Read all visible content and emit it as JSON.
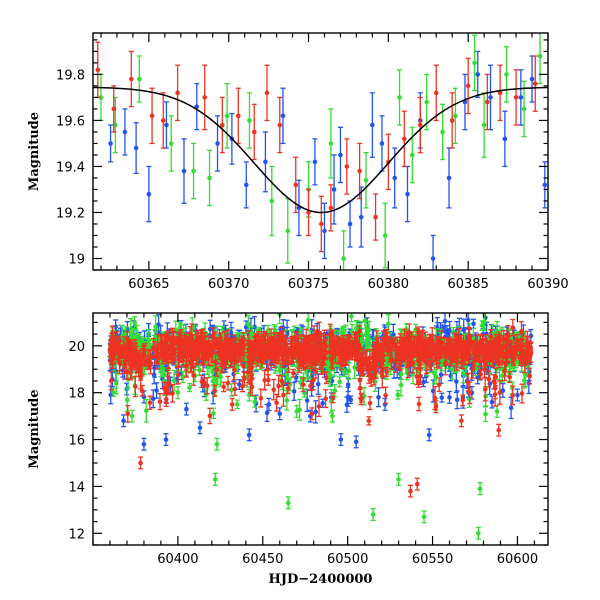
{
  "chart_data": [
    {
      "type": "scatter",
      "xlabel": "",
      "ylabel": "Magnitude",
      "xlim": [
        60361.5,
        60390
      ],
      "ylim": [
        19.98,
        18.95
      ],
      "y_inverted": true,
      "xticks": [
        60365,
        60370,
        60375,
        60380,
        60385,
        60390
      ],
      "yticks": [
        19,
        19.2,
        19.4,
        19.6,
        19.8
      ],
      "grid": false,
      "model_curve": {
        "peak_x": 60375.8,
        "peak_mag": 19.2,
        "baseline_mag": 19.745,
        "width_days": 4.2,
        "color": "#000000"
      },
      "series": [
        {
          "color": "#2255ee",
          "points": [
            [
              60362.6,
              19.5,
              0.08
            ],
            [
              60363.5,
              19.55,
              0.1
            ],
            [
              60364.2,
              19.48,
              0.11
            ],
            [
              60365.0,
              19.28,
              0.12
            ],
            [
              60366.1,
              19.58,
              0.1
            ],
            [
              60367.2,
              19.38,
              0.14
            ],
            [
              60368.0,
              19.66,
              0.1
            ],
            [
              60369.3,
              19.5,
              0.12
            ],
            [
              60370.2,
              19.52,
              0.11
            ],
            [
              60371.1,
              19.32,
              0.1
            ],
            [
              60372.3,
              19.42,
              0.13
            ],
            [
              60373.4,
              19.62,
              0.12
            ],
            [
              60374.4,
              19.22,
              0.12
            ],
            [
              60375.4,
              19.42,
              0.1
            ],
            [
              60376.0,
              19.12,
              0.12
            ],
            [
              60376.6,
              19.3,
              0.15
            ],
            [
              60377.0,
              19.45,
              0.12
            ],
            [
              60377.6,
              19.15,
              0.1
            ],
            [
              60378.3,
              19.18,
              0.13
            ],
            [
              60379.0,
              19.58,
              0.14
            ],
            [
              60379.6,
              19.5,
              0.12
            ],
            [
              60380.4,
              19.35,
              0.13
            ],
            [
              60381.2,
              19.28,
              0.12
            ],
            [
              60382.0,
              19.6,
              0.12
            ],
            [
              60382.8,
              19.0,
              0.1
            ],
            [
              60383.8,
              19.35,
              0.13
            ],
            [
              60384.8,
              19.68,
              0.12
            ],
            [
              60385.6,
              19.8,
              0.1
            ],
            [
              60386.4,
              19.7,
              0.14
            ],
            [
              60387.3,
              19.52,
              0.12
            ],
            [
              60388.3,
              19.7,
              0.12
            ],
            [
              60389.0,
              19.78,
              0.1
            ],
            [
              60389.8,
              19.32,
              0.1
            ]
          ]
        },
        {
          "color": "#33dd33",
          "points": [
            [
              60362.0,
              19.7,
              0.1
            ],
            [
              60362.9,
              19.58,
              0.12
            ],
            [
              60364.4,
              19.78,
              0.1
            ],
            [
              60366.4,
              19.5,
              0.12
            ],
            [
              60367.8,
              19.38,
              0.12
            ],
            [
              60368.8,
              19.35,
              0.12
            ],
            [
              60369.9,
              19.62,
              0.14
            ],
            [
              60371.3,
              19.6,
              0.12
            ],
            [
              60372.7,
              19.25,
              0.15
            ],
            [
              60373.7,
              19.12,
              0.14
            ],
            [
              60375.0,
              19.3,
              0.12
            ],
            [
              60376.4,
              19.5,
              0.15
            ],
            [
              60377.2,
              19.0,
              0.12
            ],
            [
              60378.6,
              19.34,
              0.12
            ],
            [
              60379.8,
              19.1,
              0.14
            ],
            [
              60380.7,
              19.7,
              0.12
            ],
            [
              60381.5,
              19.45,
              0.12
            ],
            [
              60382.4,
              19.68,
              0.12
            ],
            [
              60383.4,
              19.55,
              0.12
            ],
            [
              60384.2,
              19.62,
              0.12
            ],
            [
              60385.4,
              19.85,
              0.12
            ],
            [
              60386.0,
              19.58,
              0.14
            ],
            [
              60387.4,
              19.8,
              0.12
            ],
            [
              60388.5,
              19.65,
              0.12
            ],
            [
              60389.5,
              19.88,
              0.12
            ]
          ]
        },
        {
          "color": "#ee3322",
          "points": [
            [
              60361.8,
              19.82,
              0.12
            ],
            [
              60362.8,
              19.65,
              0.1
            ],
            [
              60363.9,
              19.78,
              0.12
            ],
            [
              60365.2,
              19.62,
              0.12
            ],
            [
              60365.9,
              19.6,
              0.12
            ],
            [
              60366.8,
              19.72,
              0.12
            ],
            [
              60368.5,
              19.7,
              0.14
            ],
            [
              60369.6,
              19.58,
              0.12
            ],
            [
              60370.6,
              19.62,
              0.12
            ],
            [
              60371.6,
              19.55,
              0.12
            ],
            [
              60372.4,
              19.72,
              0.12
            ],
            [
              60373.2,
              19.58,
              0.12
            ],
            [
              60374.2,
              19.32,
              0.12
            ],
            [
              60375.0,
              19.2,
              0.1
            ],
            [
              60375.8,
              19.15,
              0.12
            ],
            [
              60376.4,
              19.22,
              0.1
            ],
            [
              60377.4,
              19.4,
              0.12
            ],
            [
              60378.2,
              19.38,
              0.12
            ],
            [
              60379.2,
              19.18,
              0.1
            ],
            [
              60380.0,
              19.42,
              0.12
            ],
            [
              60381.0,
              19.52,
              0.12
            ],
            [
              60382.0,
              19.58,
              0.12
            ],
            [
              60383.0,
              19.72,
              0.12
            ],
            [
              60384.0,
              19.6,
              0.12
            ],
            [
              60385.0,
              19.75,
              0.12
            ],
            [
              60386.2,
              19.68,
              0.12
            ],
            [
              60387.0,
              19.72,
              0.12
            ],
            [
              60388.0,
              19.7,
              0.12
            ],
            [
              60389.2,
              19.76,
              0.12
            ]
          ]
        }
      ]
    },
    {
      "type": "scatter",
      "xlabel": "HJD−2400000",
      "ylabel": "Magnitude",
      "xlim": [
        60350,
        60618
      ],
      "ylim": [
        21.4,
        11.5
      ],
      "y_inverted": true,
      "xticks": [
        60400,
        60450,
        60500,
        60550,
        60600
      ],
      "yticks": [
        12,
        14,
        16,
        18,
        20
      ],
      "grid": false,
      "series": [
        {
          "color": "#2255ee",
          "baseline_x": [
            60360,
            60608
          ],
          "baseline_mag": 19.85,
          "outliers": [
            [
              60368,
              16.8
            ],
            [
              60380,
              15.8
            ],
            [
              60393,
              16.0
            ],
            [
              60405,
              17.3
            ],
            [
              60413,
              16.5
            ],
            [
              60442,
              16.2
            ],
            [
              60460,
              17.1
            ],
            [
              60478,
              17.0
            ],
            [
              60496,
              16.0
            ],
            [
              60505,
              15.9
            ],
            [
              60522,
              17.5
            ],
            [
              60548,
              16.2
            ],
            [
              60560,
              17.8
            ],
            [
              60585,
              17.6
            ],
            [
              60600,
              17.9
            ]
          ]
        },
        {
          "color": "#33dd33",
          "outliers": [
            [
              60373,
              17.0
            ],
            [
              60400,
              18.0
            ],
            [
              60422,
              14.3
            ],
            [
              60423,
              15.8
            ],
            [
              60442,
              17.9
            ],
            [
              60465,
              13.3
            ],
            [
              60470,
              17.2
            ],
            [
              60491,
              17.0
            ],
            [
              60515,
              12.8
            ],
            [
              60530,
              14.3
            ],
            [
              60545,
              12.7
            ],
            [
              60552,
              17.5
            ],
            [
              60577,
              12.0
            ],
            [
              60578,
              13.9
            ],
            [
              60588,
              17.2
            ],
            [
              60597,
              18.2
            ]
          ]
        },
        {
          "color": "#ee3322",
          "outliers": [
            [
              60378,
              15.0
            ],
            [
              60432,
              17.5
            ],
            [
              60479,
              17.1
            ],
            [
              60537,
              13.8
            ],
            [
              60541,
              14.1
            ],
            [
              60552,
              17.4
            ],
            [
              60567,
              16.8
            ],
            [
              60589,
              16.4
            ]
          ]
        }
      ]
    }
  ]
}
